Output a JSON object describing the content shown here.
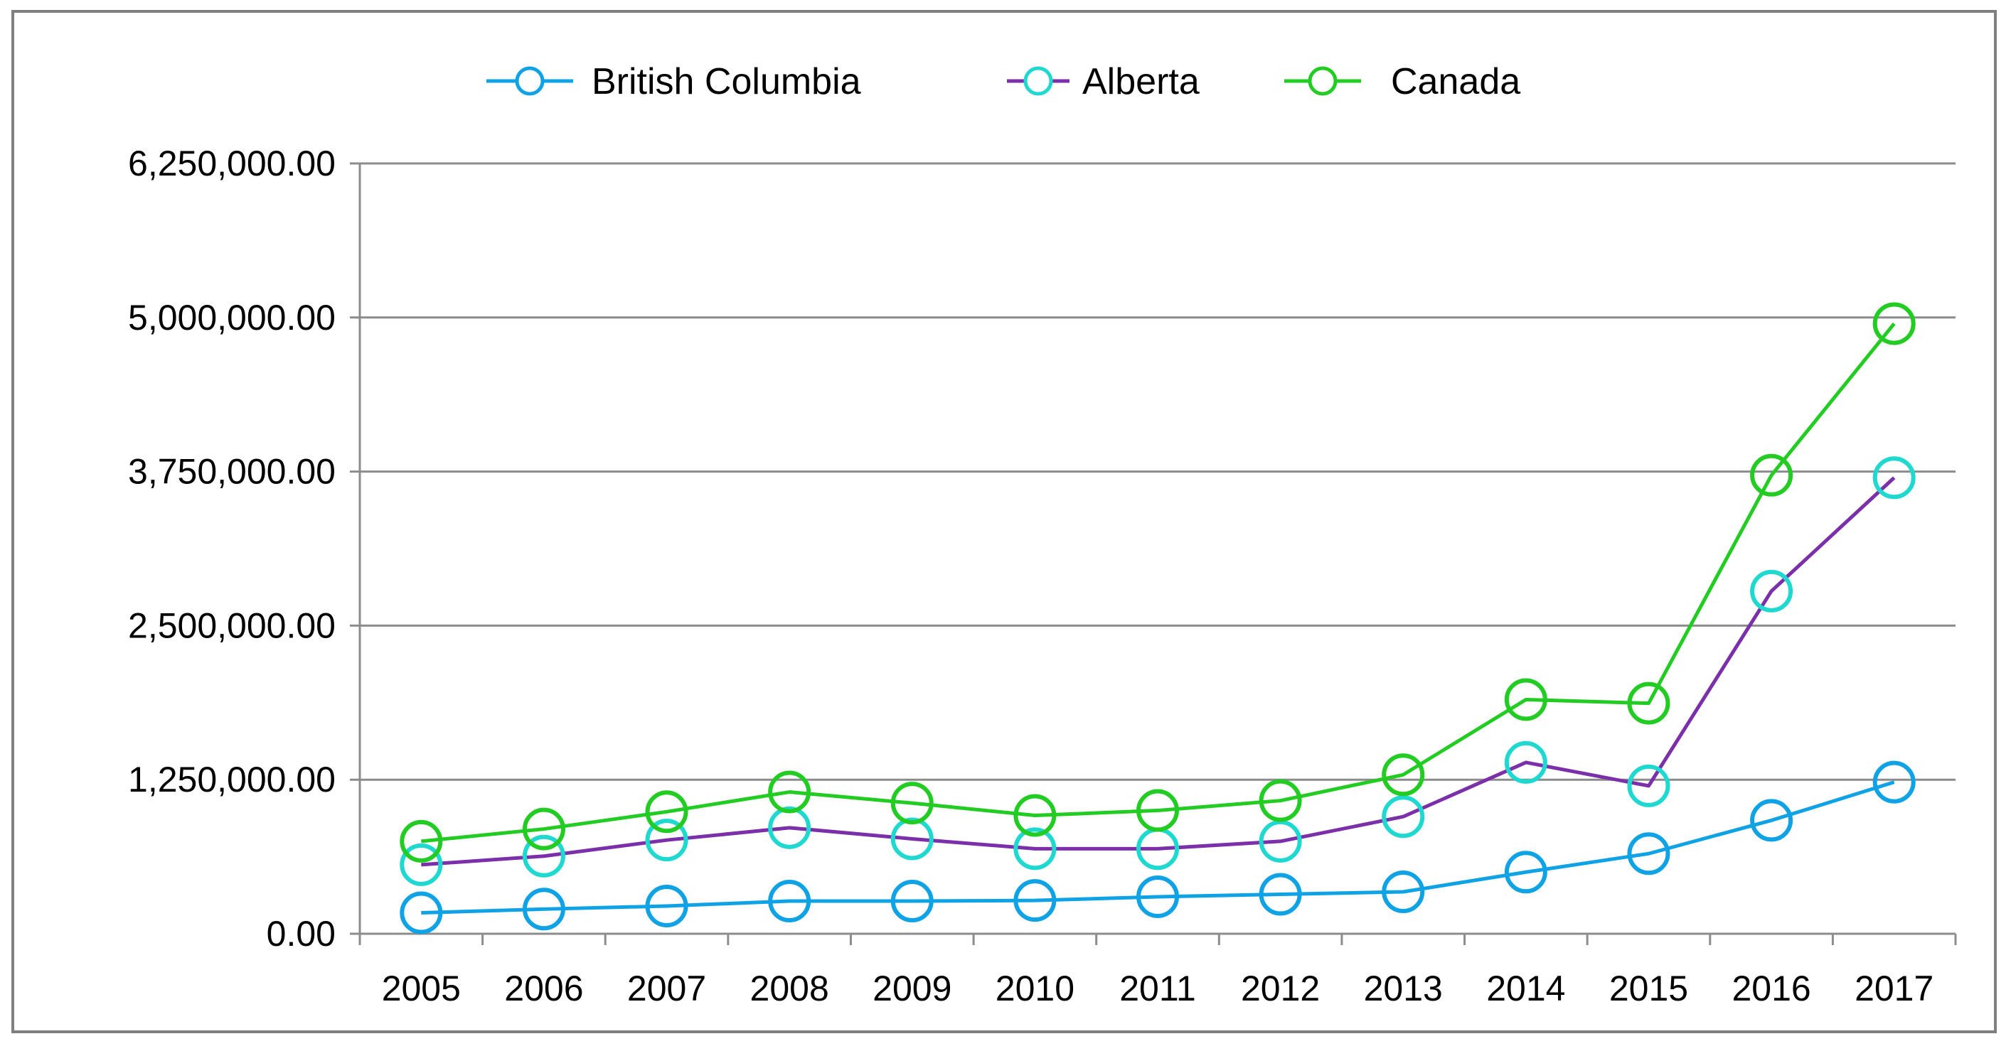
{
  "chart_data": {
    "type": "line",
    "categories": [
      "2005",
      "2006",
      "2007",
      "2008",
      "2009",
      "2010",
      "2011",
      "2012",
      "2013",
      "2014",
      "2015",
      "2016",
      "2017"
    ],
    "series": [
      {
        "name": "British Columbia",
        "color": "#0fa3e6",
        "marker_color": "#0fa3e6",
        "values": [
          170000,
          200000,
          225000,
          265000,
          265000,
          270000,
          300000,
          320000,
          340000,
          500000,
          650000,
          920000,
          1230000
        ]
      },
      {
        "name": "Alberta",
        "color": "#7b2fa8",
        "marker_color": "#1fd8d0",
        "values": [
          560000,
          630000,
          760000,
          860000,
          770000,
          690000,
          690000,
          750000,
          950000,
          1390000,
          1200000,
          2780000,
          3700000
        ]
      },
      {
        "name": "Canada",
        "color": "#22cc22",
        "marker_color": "#22cc22",
        "values": [
          750000,
          850000,
          990000,
          1150000,
          1060000,
          960000,
          1000000,
          1080000,
          1290000,
          1900000,
          1870000,
          3720000,
          4950000
        ]
      }
    ],
    "y_ticks": [
      "0.00",
      "1,250,000.00",
      "2,500,000.00",
      "3,750,000.00",
      "5,000,000.00",
      "6,250,000.00"
    ],
    "ylim": [
      0,
      6250000
    ],
    "title": "",
    "xlabel": "",
    "ylabel": "",
    "grid": "horizontal",
    "legend_position": "top-center",
    "marker": "open-circle"
  }
}
